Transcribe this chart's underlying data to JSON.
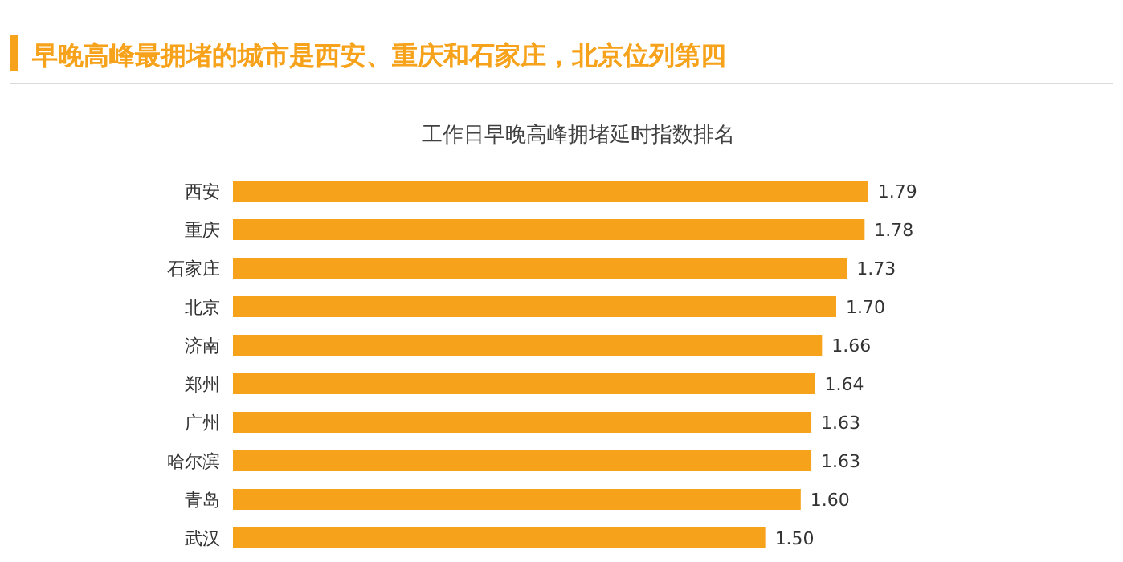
{
  "chart_data": {
    "type": "bar",
    "orientation": "horizontal",
    "title": "早晚高峰最拥堵的城市是西安、重庆和石家庄，北京位列第四",
    "subtitle": "工作日早晚高峰拥堵延时指数排名",
    "categories": [
      "西安",
      "重庆",
      "石家庄",
      "北京",
      "济南",
      "郑州",
      "广州",
      "哈尔滨",
      "青岛",
      "武汉"
    ],
    "values": [
      1.79,
      1.78,
      1.73,
      1.7,
      1.66,
      1.64,
      1.63,
      1.63,
      1.6,
      1.5
    ],
    "value_labels": [
      "1.79",
      "1.78",
      "1.73",
      "1.70",
      "1.66",
      "1.64",
      "1.63",
      "1.63",
      "1.60",
      "1.50"
    ],
    "color": "#f7a21b"
  }
}
